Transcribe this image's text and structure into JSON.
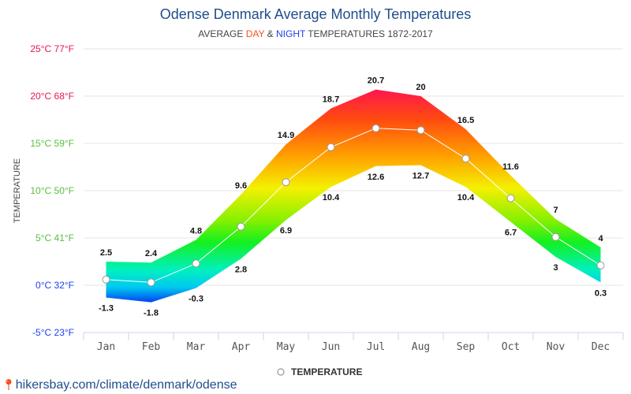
{
  "chart_data": {
    "type": "area",
    "title": "Odense Denmark Average Monthly Temperatures",
    "subtitle": {
      "prefix": "AVERAGE ",
      "day": "DAY",
      "amp": " & ",
      "night": "NIGHT",
      "suffix": " TEMPERATURES 1872-2017"
    },
    "colors": {
      "day": "#f4511e",
      "night": "#1e3ff0"
    },
    "ylabel": "TEMPERATURE",
    "ylim": [
      -5,
      25
    ],
    "yticks": [
      {
        "value": 25,
        "label": "25°C 77°F",
        "color": "#e8174f"
      },
      {
        "value": 20,
        "label": "20°C 68°F",
        "color": "#e8174f"
      },
      {
        "value": 15,
        "label": "15°C 59°F",
        "color": "#56c23c"
      },
      {
        "value": 10,
        "label": "10°C 50°F",
        "color": "#56c23c"
      },
      {
        "value": 5,
        "label": "5°C 41°F",
        "color": "#56c23c"
      },
      {
        "value": 0,
        "label": "0°C 32°F",
        "color": "#1e3ff0"
      },
      {
        "value": -5,
        "label": "-5°C 23°F",
        "color": "#1e3ff0"
      }
    ],
    "categories": [
      "Jan",
      "Feb",
      "Mar",
      "Apr",
      "May",
      "Jun",
      "Jul",
      "Aug",
      "Sep",
      "Oct",
      "Nov",
      "Dec"
    ],
    "series": [
      {
        "name": "Day",
        "values": [
          2.5,
          2.4,
          4.8,
          9.6,
          14.9,
          18.7,
          20.7,
          20,
          16.5,
          11.6,
          7,
          4
        ]
      },
      {
        "name": "Night",
        "values": [
          -1.3,
          -1.8,
          -0.3,
          2.8,
          6.9,
          10.4,
          12.6,
          12.7,
          10.4,
          6.7,
          3,
          0.3
        ]
      },
      {
        "name": "TEMPERATURE",
        "values": [
          0.6,
          0.3,
          2.3,
          6.2,
          10.9,
          14.6,
          16.6,
          16.4,
          13.4,
          9.2,
          5.1,
          2.1
        ]
      }
    ],
    "grid": true,
    "legend": {
      "position": "bottom",
      "entries": [
        "TEMPERATURE"
      ]
    }
  },
  "footer": {
    "link": "hikersbay.com/climate/denmark/odense",
    "icon": "map-pin-icon"
  }
}
